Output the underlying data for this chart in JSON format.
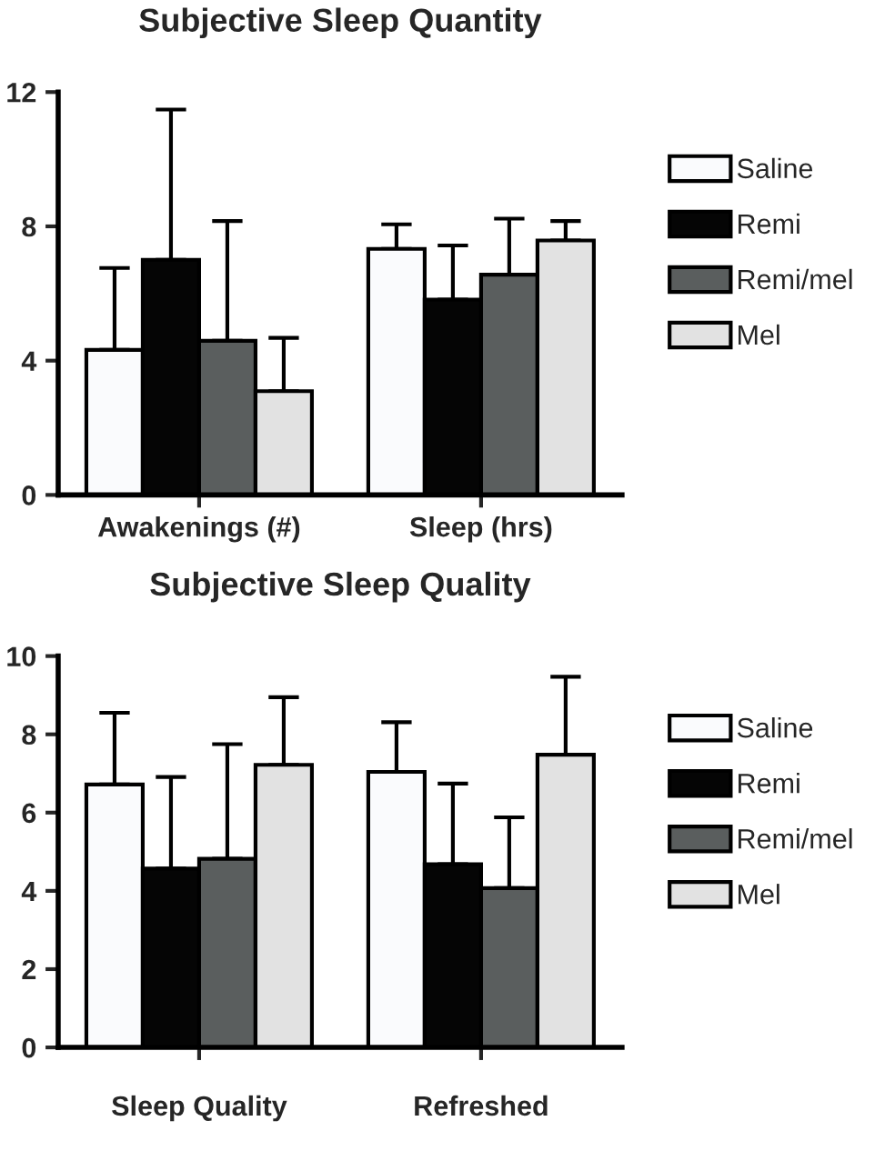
{
  "chart_data": [
    {
      "type": "bar",
      "title": "Subjective Sleep Quantity",
      "categories": [
        "Awakenings (#)",
        "Sleep (hrs)"
      ],
      "ylim": [
        0,
        12
      ],
      "yticks": [
        0,
        4,
        8,
        12
      ],
      "grid": false,
      "legend": "right",
      "series": [
        {
          "name": "Saline",
          "color": "#fafbfd",
          "values": [
            4.32,
            7.33
          ],
          "errors": [
            [
              4.32,
              6.76
            ],
            [
              7.33,
              8.06
            ]
          ]
        },
        {
          "name": "Remi",
          "color": "#050505",
          "values": [
            7.0,
            5.82
          ],
          "errors": [
            [
              7.0,
              11.48
            ],
            [
              5.82,
              7.43
            ]
          ]
        },
        {
          "name": "Remi/mel",
          "color": "#5a5e5e",
          "values": [
            4.59,
            6.56
          ],
          "errors": [
            [
              4.59,
              8.16
            ],
            [
              6.56,
              8.23
            ]
          ]
        },
        {
          "name": "Mel",
          "color": "#e2e2e2",
          "values": [
            3.09,
            7.58
          ],
          "errors": [
            [
              3.09,
              4.68
            ],
            [
              7.58,
              8.16
            ]
          ]
        }
      ]
    },
    {
      "type": "bar",
      "title": "Subjective Sleep Quality",
      "categories": [
        "Sleep Quality",
        "Refreshed"
      ],
      "ylim": [
        0,
        10
      ],
      "yticks": [
        0,
        2,
        4,
        6,
        8,
        10
      ],
      "grid": false,
      "legend": "right",
      "series": [
        {
          "name": "Saline",
          "color": "#fafbfd",
          "values": [
            6.72,
            7.04
          ],
          "errors": [
            [
              6.72,
              8.55
            ],
            [
              7.04,
              8.31
            ]
          ]
        },
        {
          "name": "Remi",
          "color": "#050505",
          "values": [
            4.57,
            4.68
          ],
          "errors": [
            [
              4.57,
              6.91
            ],
            [
              4.68,
              6.74
            ]
          ]
        },
        {
          "name": "Remi/mel",
          "color": "#5a5e5e",
          "values": [
            4.82,
            4.07
          ],
          "errors": [
            [
              4.82,
              7.75
            ],
            [
              4.07,
              5.88
            ]
          ]
        },
        {
          "name": "Mel",
          "color": "#e2e2e2",
          "values": [
            7.22,
            7.48
          ],
          "errors": [
            [
              7.22,
              8.95
            ],
            [
              7.48,
              9.47
            ]
          ]
        }
      ]
    }
  ]
}
